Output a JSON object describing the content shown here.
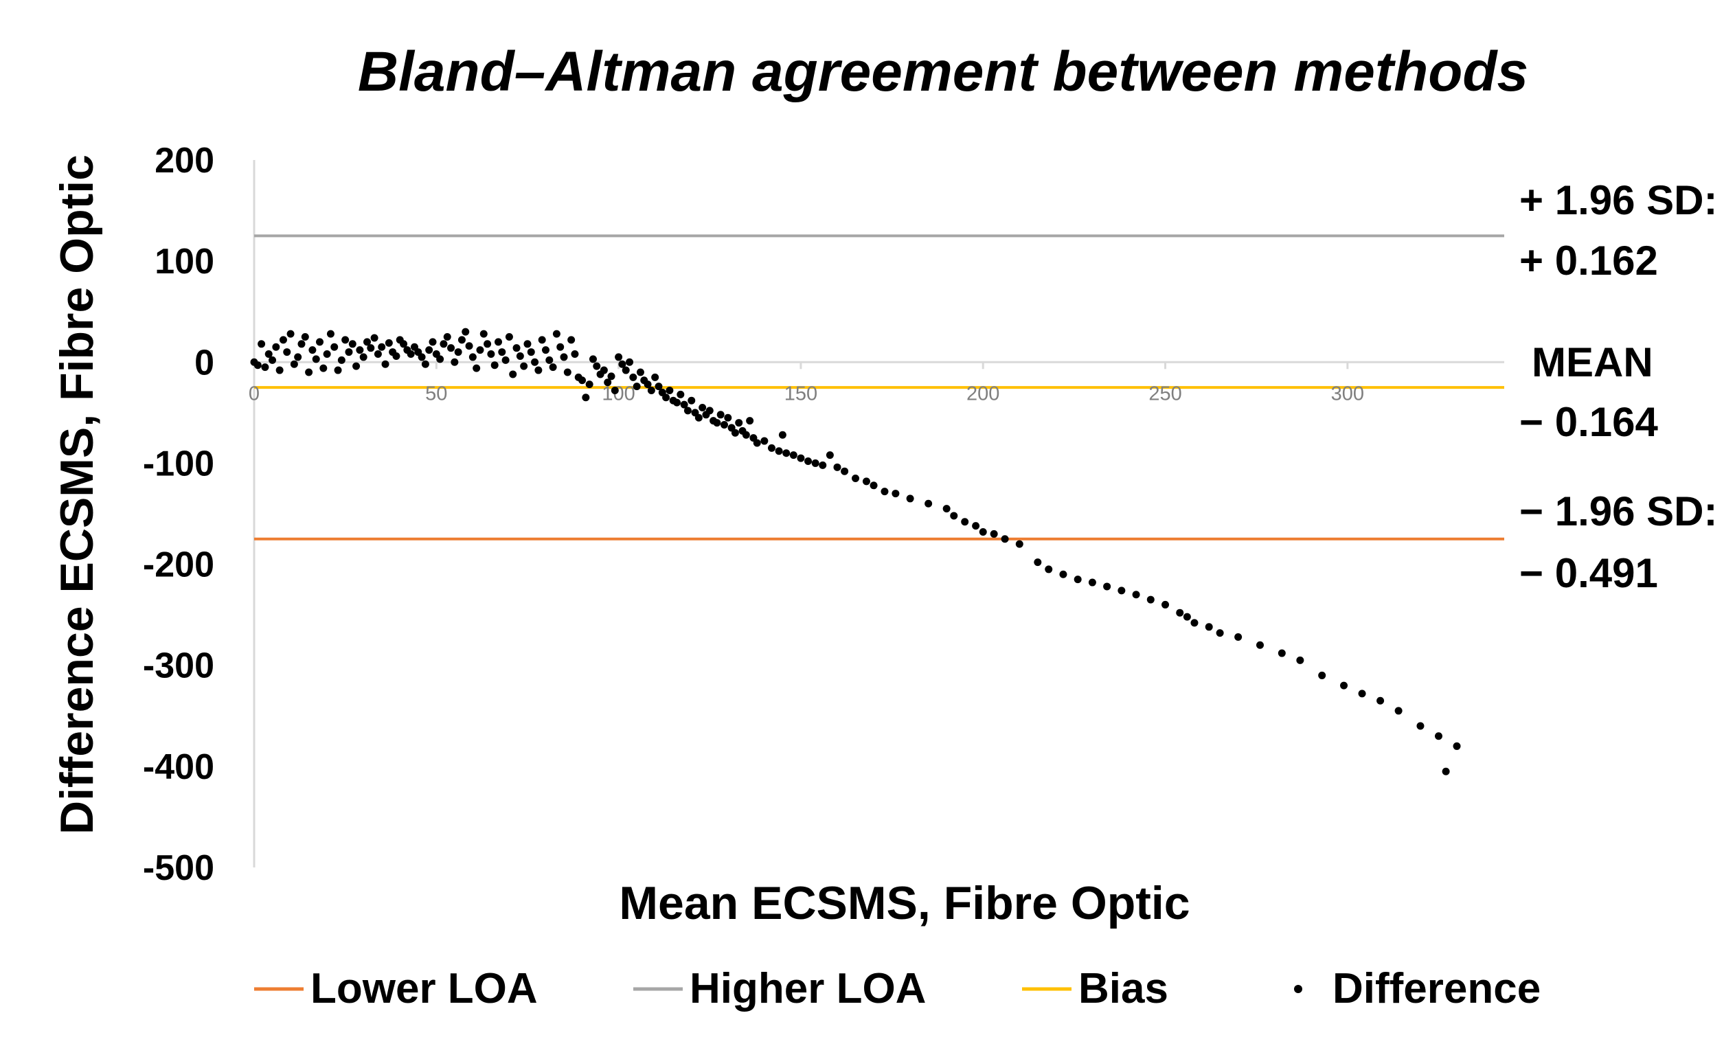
{
  "chart_data": {
    "type": "scatter",
    "title": "Bland–Altman agreement between methods",
    "xlabel": "Mean ECSMS, Fibre Optic",
    "ylabel": "Difference ECSMS, Fibre Optic",
    "xlim": [
      0,
      343
    ],
    "ylim": [
      -500,
      200
    ],
    "xticks": [
      "0",
      "50",
      "100",
      "150",
      "200",
      "250",
      "300"
    ],
    "yticks": [
      "200",
      "100",
      "0",
      "-100",
      "-200",
      "-300",
      "-400",
      "-500"
    ],
    "x_axis_position": 0,
    "reference_lines": [
      {
        "name": "Higher LOA",
        "y": 125,
        "color": "#a6a6a6"
      },
      {
        "name": "Bias",
        "y": -25,
        "color": "#ffc000"
      },
      {
        "name": "Lower LOA",
        "y": -175,
        "color": "#ed7d31"
      }
    ],
    "annotations": [
      {
        "line": "upper",
        "label": "+ 1.96 SD:",
        "value": "+ 0.162"
      },
      {
        "line": "mean",
        "label": "MEAN",
        "value": "− 0.164"
      },
      {
        "line": "lower",
        "label": "− 1.96 SD:",
        "value": "− 0.491"
      }
    ],
    "legend": [
      {
        "name": "Lower LOA",
        "type": "line",
        "color": "#ed7d31"
      },
      {
        "name": "Higher LOA",
        "type": "line",
        "color": "#a6a6a6"
      },
      {
        "name": "Bias",
        "type": "line",
        "color": "#ffc000"
      },
      {
        "name": "Difference",
        "type": "marker",
        "color": "#000000"
      }
    ],
    "legend_position": "bottom",
    "difference_points": [
      [
        0,
        0
      ],
      [
        1,
        -3
      ],
      [
        2,
        18
      ],
      [
        3,
        -5
      ],
      [
        4,
        8
      ],
      [
        5,
        2
      ],
      [
        6,
        15
      ],
      [
        7,
        -8
      ],
      [
        8,
        22
      ],
      [
        9,
        10
      ],
      [
        10,
        28
      ],
      [
        11,
        -2
      ],
      [
        12,
        5
      ],
      [
        13,
        18
      ],
      [
        14,
        25
      ],
      [
        15,
        -10
      ],
      [
        16,
        12
      ],
      [
        17,
        3
      ],
      [
        18,
        20
      ],
      [
        19,
        -6
      ],
      [
        20,
        8
      ],
      [
        21,
        28
      ],
      [
        22,
        15
      ],
      [
        23,
        -8
      ],
      [
        24,
        2
      ],
      [
        25,
        22
      ],
      [
        26,
        10
      ],
      [
        27,
        18
      ],
      [
        28,
        -4
      ],
      [
        29,
        12
      ],
      [
        30,
        5
      ],
      [
        31,
        20
      ],
      [
        32,
        14
      ],
      [
        33,
        24
      ],
      [
        34,
        8
      ],
      [
        35,
        15
      ],
      [
        36,
        -2
      ],
      [
        37,
        19
      ],
      [
        38,
        10
      ],
      [
        39,
        6
      ],
      [
        40,
        22
      ],
      [
        41,
        18
      ],
      [
        42,
        12
      ],
      [
        43,
        8
      ],
      [
        44,
        15
      ],
      [
        45,
        10
      ],
      [
        46,
        5
      ],
      [
        47,
        -2
      ],
      [
        48,
        12
      ],
      [
        49,
        20
      ],
      [
        50,
        8
      ],
      [
        51,
        3
      ],
      [
        52,
        18
      ],
      [
        53,
        25
      ],
      [
        54,
        14
      ],
      [
        55,
        0
      ],
      [
        56,
        10
      ],
      [
        57,
        22
      ],
      [
        58,
        30
      ],
      [
        59,
        16
      ],
      [
        60,
        5
      ],
      [
        61,
        -6
      ],
      [
        62,
        12
      ],
      [
        63,
        28
      ],
      [
        64,
        18
      ],
      [
        65,
        8
      ],
      [
        66,
        -3
      ],
      [
        67,
        20
      ],
      [
        68,
        10
      ],
      [
        69,
        2
      ],
      [
        70,
        25
      ],
      [
        71,
        -12
      ],
      [
        72,
        14
      ],
      [
        73,
        6
      ],
      [
        74,
        -4
      ],
      [
        75,
        18
      ],
      [
        76,
        10
      ],
      [
        77,
        0
      ],
      [
        78,
        -8
      ],
      [
        79,
        22
      ],
      [
        80,
        12
      ],
      [
        81,
        2
      ],
      [
        82,
        -5
      ],
      [
        83,
        28
      ],
      [
        84,
        15
      ],
      [
        85,
        5
      ],
      [
        86,
        -10
      ],
      [
        87,
        22
      ],
      [
        88,
        8
      ],
      [
        89,
        -15
      ],
      [
        90,
        -18
      ],
      [
        91,
        -35
      ],
      [
        92,
        -22
      ],
      [
        93,
        3
      ],
      [
        94,
        -4
      ],
      [
        95,
        -12
      ],
      [
        96,
        -8
      ],
      [
        97,
        -20
      ],
      [
        98,
        -14
      ],
      [
        99,
        -28
      ],
      [
        100,
        5
      ],
      [
        101,
        -2
      ],
      [
        102,
        -8
      ],
      [
        103,
        0
      ],
      [
        104,
        -15
      ],
      [
        105,
        -24
      ],
      [
        106,
        -10
      ],
      [
        107,
        -18
      ],
      [
        108,
        -22
      ],
      [
        109,
        -28
      ],
      [
        110,
        -15
      ],
      [
        111,
        -24
      ],
      [
        112,
        -30
      ],
      [
        113,
        -35
      ],
      [
        114,
        -28
      ],
      [
        115,
        -38
      ],
      [
        116,
        -40
      ],
      [
        117,
        -32
      ],
      [
        118,
        -42
      ],
      [
        119,
        -48
      ],
      [
        120,
        -38
      ],
      [
        121,
        -50
      ],
      [
        122,
        -55
      ],
      [
        123,
        -45
      ],
      [
        124,
        -52
      ],
      [
        125,
        -48
      ],
      [
        126,
        -58
      ],
      [
        127,
        -60
      ],
      [
        128,
        -52
      ],
      [
        129,
        -62
      ],
      [
        130,
        -55
      ],
      [
        131,
        -65
      ],
      [
        132,
        -70
      ],
      [
        133,
        -60
      ],
      [
        134,
        -68
      ],
      [
        135,
        -72
      ],
      [
        136,
        -58
      ],
      [
        137,
        -75
      ],
      [
        138,
        -80
      ],
      [
        140,
        -78
      ],
      [
        142,
        -85
      ],
      [
        144,
        -88
      ],
      [
        145,
        -72
      ],
      [
        146,
        -90
      ],
      [
        148,
        -92
      ],
      [
        150,
        -95
      ],
      [
        152,
        -98
      ],
      [
        154,
        -100
      ],
      [
        156,
        -102
      ],
      [
        158,
        -92
      ],
      [
        160,
        -104
      ],
      [
        162,
        -108
      ],
      [
        165,
        -115
      ],
      [
        168,
        -118
      ],
      [
        170,
        -122
      ],
      [
        173,
        -128
      ],
      [
        176,
        -130
      ],
      [
        180,
        -135
      ],
      [
        185,
        -140
      ],
      [
        190,
        -145
      ],
      [
        192,
        -152
      ],
      [
        195,
        -158
      ],
      [
        198,
        -162
      ],
      [
        200,
        -168
      ],
      [
        203,
        -170
      ],
      [
        206,
        -175
      ],
      [
        210,
        -180
      ],
      [
        215,
        -198
      ],
      [
        218,
        -205
      ],
      [
        222,
        -210
      ],
      [
        226,
        -215
      ],
      [
        230,
        -218
      ],
      [
        234,
        -222
      ],
      [
        238,
        -226
      ],
      [
        242,
        -230
      ],
      [
        246,
        -235
      ],
      [
        250,
        -240
      ],
      [
        254,
        -248
      ],
      [
        256,
        -252
      ],
      [
        258,
        -258
      ],
      [
        262,
        -262
      ],
      [
        265,
        -268
      ],
      [
        270,
        -272
      ],
      [
        276,
        -280
      ],
      [
        282,
        -288
      ],
      [
        287,
        -295
      ],
      [
        293,
        -310
      ],
      [
        299,
        -320
      ],
      [
        304,
        -328
      ],
      [
        309,
        -335
      ],
      [
        314,
        -345
      ],
      [
        320,
        -360
      ],
      [
        325,
        -370
      ],
      [
        327,
        -405
      ],
      [
        330,
        -380
      ]
    ]
  }
}
